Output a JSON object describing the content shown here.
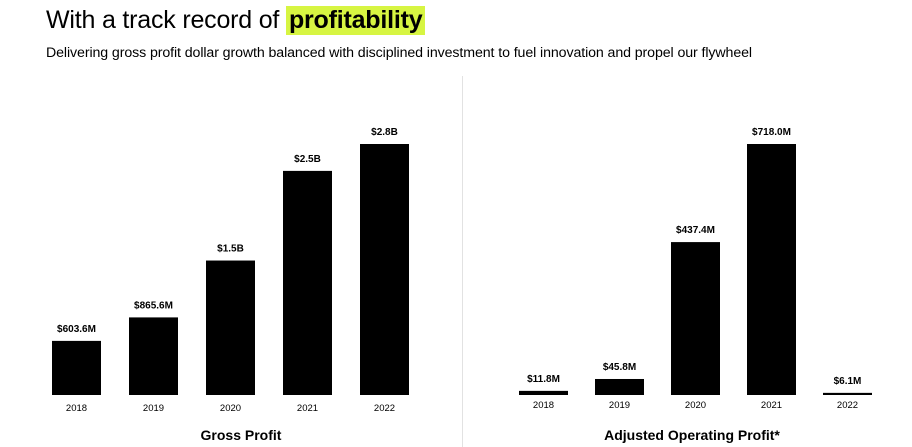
{
  "header": {
    "title_prefix": "With a track record of",
    "title_highlight": "profitability",
    "subtitle": "Delivering gross profit dollar growth balanced with disciplined investment to fuel innovation and propel our flywheel"
  },
  "colors": {
    "highlight": "#d7f542",
    "bar": "#000000",
    "divider": "#e2e2e2"
  },
  "chart_data": [
    {
      "type": "bar",
      "title": "Gross Profit",
      "unit": "$B",
      "categories": [
        "2018",
        "2019",
        "2020",
        "2021",
        "2022"
      ],
      "values": [
        0.6036,
        0.8656,
        1.5,
        2.5,
        2.8
      ],
      "data_labels": [
        "$603.6M",
        "$865.6M",
        "$1.5B",
        "$2.5B",
        "$2.8B"
      ],
      "ylim": [
        0,
        2.8
      ],
      "xlabel": "",
      "ylabel": "",
      "grid": false
    },
    {
      "type": "bar",
      "title": "Adjusted Operating Profit*",
      "unit": "$M",
      "categories": [
        "2018",
        "2019",
        "2020",
        "2021",
        "2022"
      ],
      "values": [
        11.8,
        45.8,
        437.4,
        718.0,
        6.1
      ],
      "data_labels": [
        "$11.8M",
        "$45.8M",
        "$437.4M",
        "$718.0M",
        "$6.1M"
      ],
      "ylim": [
        0,
        718.0
      ],
      "xlabel": "",
      "ylabel": "",
      "grid": false
    }
  ]
}
